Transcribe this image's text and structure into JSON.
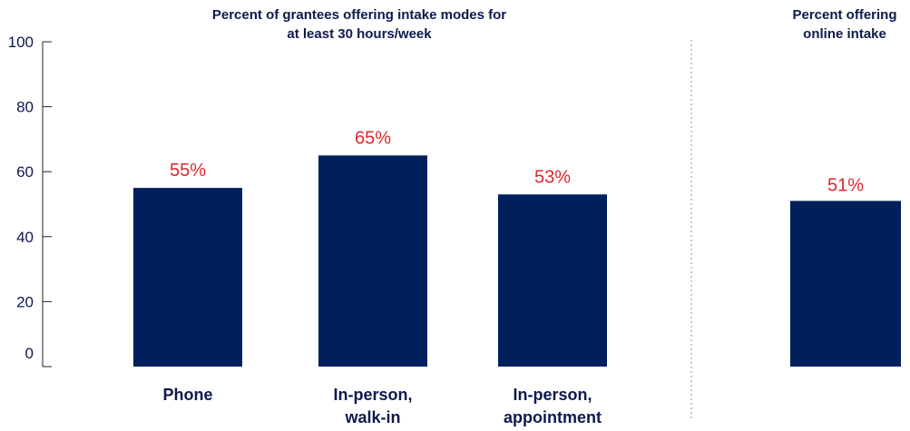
{
  "chart_data": [
    {
      "type": "bar",
      "title": [
        "Percent of grantees offering intake modes for",
        "at least 30 hours/week"
      ],
      "categories": [
        [
          "Phone"
        ],
        [
          "In-person,",
          "walk-in"
        ],
        [
          "In-person,",
          "appointment"
        ]
      ],
      "values": [
        55,
        65,
        53
      ],
      "data_labels": [
        "55%",
        "65%",
        "53%"
      ],
      "ylim": [
        0,
        100
      ],
      "yticks": [
        0,
        20,
        40,
        60,
        80,
        100
      ],
      "ytick_labels": [
        "0",
        "20",
        "40",
        "60",
        "80",
        "100"
      ],
      "grid": false
    },
    {
      "type": "bar",
      "title": [
        "Percent offering",
        "online intake"
      ],
      "categories": [
        [
          ""
        ]
      ],
      "values": [
        51
      ],
      "data_labels": [
        "51%"
      ],
      "ylim": [
        0,
        100
      ]
    }
  ],
  "colors": {
    "bar": "#001f5b",
    "data_label": "#e0262b",
    "text": "#0d1a4d",
    "divider": "#b5b5b5"
  }
}
